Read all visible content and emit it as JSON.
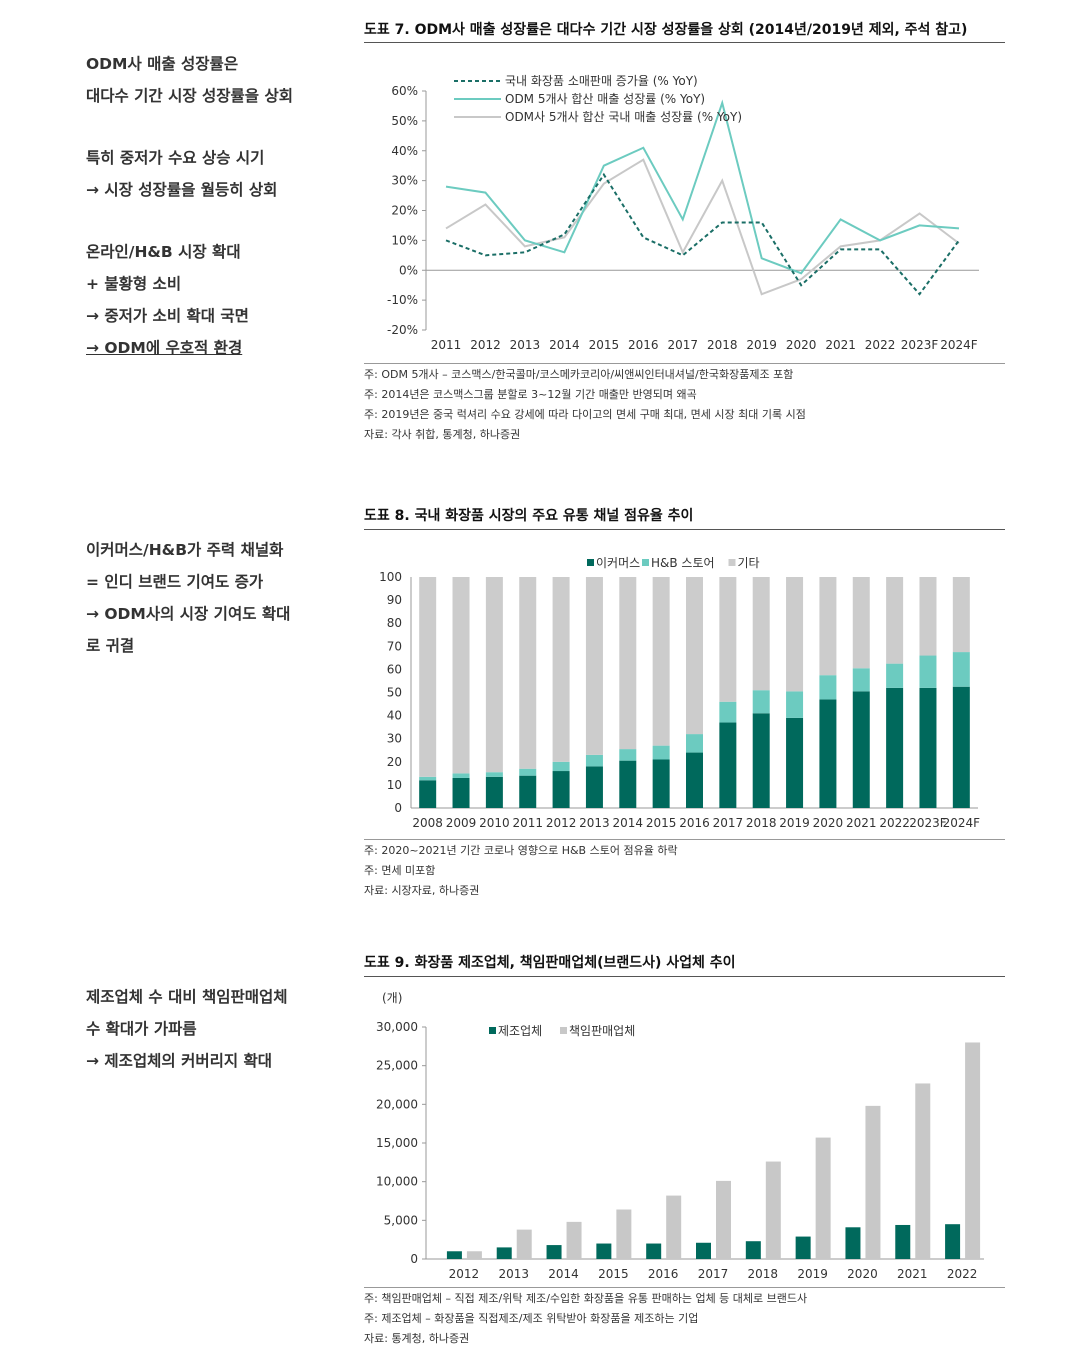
{
  "sections": [
    {
      "side_lines": [
        {
          "text": "ODM사 매출 성장률은"
        },
        {
          "text": "대다수 기간 시장 성장률을 상회"
        },
        {
          "gap": true
        },
        {
          "text": "특히 중저가 수요 상승 시기"
        },
        {
          "text": "→ 시장 성장률을 월등히 상회"
        },
        {
          "gap": true
        },
        {
          "text": "온라인/H&B 시장 확대"
        },
        {
          "text": "+ 불황형 소비"
        },
        {
          "text": "→ 중저가 소비 확대 국면"
        },
        {
          "text": "→ ODM에 우호적 환경",
          "underline": true
        }
      ],
      "title": "도표 7. ODM사 매출 성장률은 대다수 기간 시장 성장률을 상회 (2014년/2019년 제외, 주석 참고)",
      "notes": [
        "주: ODM 5개사 – 코스맥스/한국콜마/코스메카코리아/씨앤씨인터내셔널/한국화장품제조 포함",
        "주: 2014년은 코스맥스그룹 분할로 3~12월 기간 매출만 반영되며 왜곡",
        "주: 2019년은 중국 럭셔리 수요 강세에 따라 다이고의 면세 구매 최대, 면세 시장 최대 기록 시점",
        "자료: 각사 취합, 통계청, 하나증권"
      ]
    },
    {
      "side_lines": [
        {
          "text": "이커머스/H&B가 주력 채널화"
        },
        {
          "text": "= 인디 브랜드 기여도 증가"
        },
        {
          "text": "→ ODM사의 시장 기여도 확대"
        },
        {
          "text": "로 귀결"
        }
      ],
      "title": "도표 8. 국내 화장품 시장의 주요 유통 채널 점유율 추이",
      "notes": [
        "주: 2020~2021년 기간 코로나 영향으로 H&B 스토어 점유율 하락",
        "주: 면세 미포함",
        "자료: 시장자료, 하나증권"
      ]
    },
    {
      "side_lines": [
        {
          "text": "제조업체 수 대비 책임판매업체"
        },
        {
          "text": "수 확대가 가파름"
        },
        {
          "text": "→ 제조업체의 커버리지 확대"
        }
      ],
      "title": "도표 9. 화장품 제조업체, 책임판매업체(브랜드사) 사업체 추이",
      "notes": [
        "주: 책임판매업체 – 직접 제조/위탁 제조/수입한 화장품을 유통 판매하는 업체 등 대체로 브랜드사",
        "주: 제조업체 – 화장품을 직접제조/제조 위탁받아 화장품을 제조하는 기업",
        "자료: 통계청, 하나증권"
      ]
    }
  ],
  "chart_data": [
    {
      "type": "line",
      "categories": [
        "2011",
        "2012",
        "2013",
        "2014",
        "2015",
        "2016",
        "2017",
        "2018",
        "2019",
        "2020",
        "2021",
        "2022",
        "2023F",
        "2024F"
      ],
      "ylim": [
        -20,
        60
      ],
      "yticks": [
        -20,
        -10,
        0,
        10,
        20,
        30,
        40,
        50,
        60
      ],
      "ytick_labels": [
        "-20%",
        "-10%",
        "0%",
        "10%",
        "20%",
        "30%",
        "40%",
        "50%",
        "60%"
      ],
      "grid": false,
      "legend_position": "top",
      "series": [
        {
          "name": "국내 화장품 소매판매 증가율 (% YoY)",
          "color": "#1a6e66",
          "dashed": true,
          "values": [
            10,
            5,
            6,
            12,
            32,
            11,
            5,
            16,
            16,
            -5,
            7,
            7,
            -8,
            10
          ]
        },
        {
          "name": "ODM 5개사 합산 매출 성장률 (% YoY)",
          "color": "#6ccbc0",
          "dashed": false,
          "values": [
            28,
            26,
            10,
            6,
            35,
            41,
            17,
            56,
            4,
            -1,
            17,
            10,
            15,
            14
          ]
        },
        {
          "name": "ODM사 5개사 합산 국내 매출 성장률 (% YoY)",
          "color": "#c8c8c8",
          "dashed": false,
          "values": [
            14,
            22,
            8,
            11,
            29,
            37,
            6,
            30,
            -8,
            -3,
            8,
            10,
            19,
            9
          ]
        }
      ]
    },
    {
      "type": "bar",
      "stacked": true,
      "categories": [
        "2008",
        "2009",
        "2010",
        "2011",
        "2012",
        "2013",
        "2014",
        "2015",
        "2016",
        "2017",
        "2018",
        "2019",
        "2020",
        "2021",
        "2022",
        "2023F",
        "2024F"
      ],
      "ylim": [
        0,
        100
      ],
      "yticks": [
        0,
        10,
        20,
        30,
        40,
        50,
        60,
        70,
        80,
        90,
        100
      ],
      "grid": false,
      "legend_position": "top",
      "series": [
        {
          "name": "이커머스",
          "color": "#00695c",
          "values": [
            12,
            13,
            13.5,
            14,
            16,
            18,
            20.5,
            21,
            24,
            37,
            41,
            39,
            47,
            50.5,
            52,
            52,
            52.5
          ]
        },
        {
          "name": "H&B 스토어",
          "color": "#6ccbc0",
          "values": [
            1.5,
            2,
            2,
            3,
            4,
            5,
            5,
            6,
            8,
            9,
            10,
            11.5,
            10.5,
            10,
            10.5,
            14,
            15
          ]
        },
        {
          "name": "기타",
          "color": "#cccccc",
          "values": [
            86.5,
            85,
            84.5,
            83,
            80,
            77,
            74.5,
            73,
            68,
            54,
            49,
            49.5,
            42.5,
            39.5,
            37.5,
            34,
            32.5
          ]
        }
      ]
    },
    {
      "type": "bar",
      "unit_label": "(개)",
      "categories": [
        "2012",
        "2013",
        "2014",
        "2015",
        "2016",
        "2017",
        "2018",
        "2019",
        "2020",
        "2021",
        "2022"
      ],
      "ylim": [
        0,
        30000
      ],
      "yticks": [
        0,
        5000,
        10000,
        15000,
        20000,
        25000,
        30000
      ],
      "ytick_labels": [
        "0",
        "5,000",
        "10,000",
        "15,000",
        "20,000",
        "25,000",
        "30,000"
      ],
      "grid": false,
      "legend_position": "top-left",
      "series": [
        {
          "name": "제조업체",
          "color": "#00695c",
          "values": [
            1000,
            1500,
            1800,
            2000,
            2000,
            2100,
            2300,
            2900,
            4100,
            4400,
            4500
          ]
        },
        {
          "name": "책임판매업체",
          "color": "#c8c8c8",
          "values": [
            1000,
            3800,
            4800,
            6400,
            8200,
            10100,
            12600,
            15700,
            19800,
            22700,
            28000
          ]
        }
      ]
    }
  ]
}
